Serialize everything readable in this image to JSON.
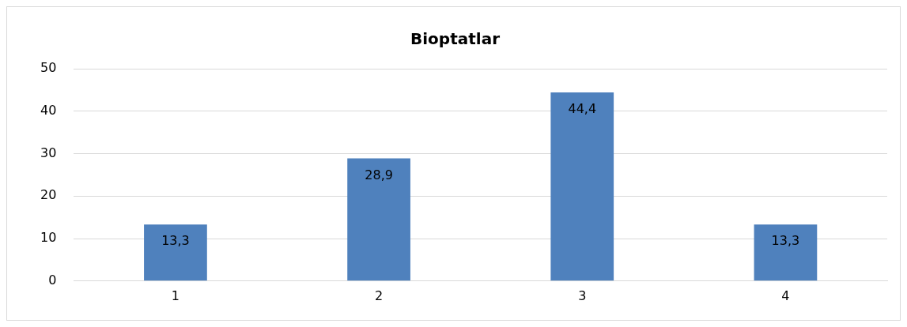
{
  "chart_data": {
    "type": "bar",
    "title": "Bioptatlar",
    "categories": [
      "1",
      "2",
      "3",
      "4"
    ],
    "values": [
      13.3,
      28.9,
      44.4,
      13.3
    ],
    "value_labels": [
      "13,3",
      "28,9",
      "44,4",
      "13,3"
    ],
    "color": "#4f81bd",
    "ylim": [
      0,
      50
    ],
    "yticks": [
      0,
      10,
      20,
      30,
      40,
      50
    ],
    "grid": "y",
    "legend": false
  }
}
